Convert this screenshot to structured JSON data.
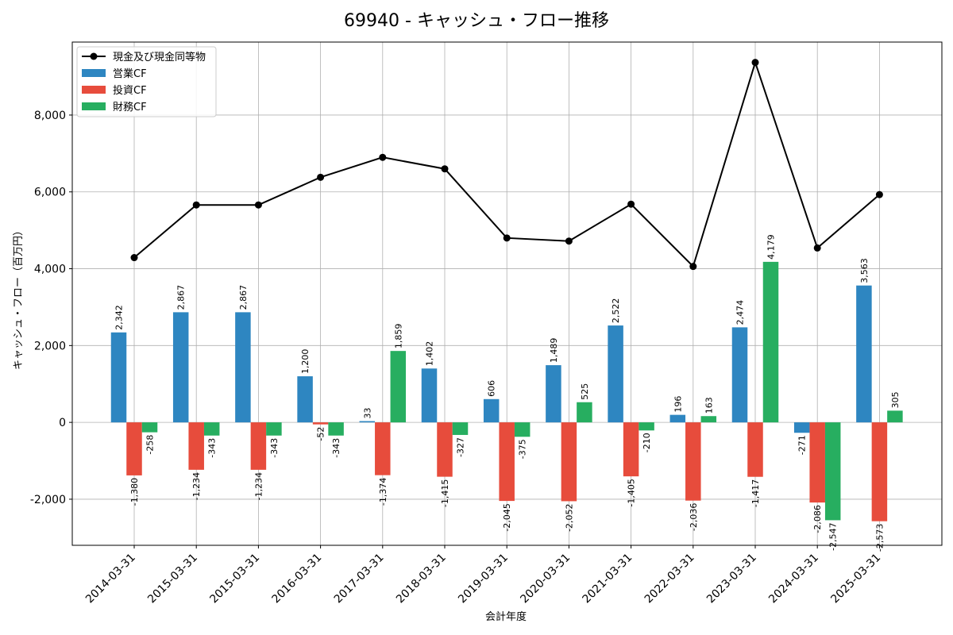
{
  "chart_data": {
    "type": "bar+line",
    "title": "69940 - キャッシュ・フロー推移",
    "xlabel": "会計年度",
    "ylabel": "キャッシュ・フロー（百万円）",
    "ylim": [
      -3200,
      9900
    ],
    "yticks": [
      -2000,
      0,
      2000,
      4000,
      6000,
      8000
    ],
    "ytick_labels": [
      "-2,000",
      "0",
      "2,000",
      "4,000",
      "6,000",
      "8,000"
    ],
    "grid": true,
    "legend_position": "top-left",
    "categories": [
      "2014-03-31",
      "2015-03-31",
      "2015-03-31",
      "2016-03-31",
      "2017-03-31",
      "2018-03-31",
      "2019-03-31",
      "2020-03-31",
      "2021-03-31",
      "2022-03-31",
      "2023-03-31",
      "2024-03-31",
      "2025-03-31"
    ],
    "line": {
      "name": "現金及び現金同等物",
      "color": "#000000",
      "values": [
        4290,
        5660,
        5660,
        6380,
        6900,
        6600,
        4800,
        4720,
        5680,
        4060,
        9370,
        4540,
        5930
      ]
    },
    "series": [
      {
        "name": "営業CF",
        "color": "#2e86c1",
        "values": [
          2342,
          2867,
          2867,
          1200,
          33,
          1402,
          606,
          1489,
          2522,
          196,
          2474,
          -271,
          3563
        ],
        "labels": [
          "2,342",
          "2,867",
          "2,867",
          "1,200",
          "33",
          "1,402",
          "606",
          "1,489",
          "2,522",
          "196",
          "2,474",
          "-271",
          "3,563"
        ]
      },
      {
        "name": "投資CF",
        "color": "#e74c3c",
        "values": [
          -1380,
          -1234,
          -1234,
          -52,
          -1374,
          -1415,
          -2045,
          -2052,
          -1405,
          -2036,
          -1417,
          -2086,
          -2573
        ],
        "labels": [
          "-1,380",
          "-1,234",
          "-1,234",
          "-52",
          "-1,374",
          "-1,415",
          "-2,045",
          "-2,052",
          "-1,405",
          "-2,036",
          "-1,417",
          "-2,086",
          "-2,573"
        ]
      },
      {
        "name": "財務CF",
        "color": "#27ae60",
        "values": [
          -258,
          -343,
          -343,
          -343,
          1859,
          -327,
          -375,
          525,
          -210,
          163,
          4179,
          -2547,
          305
        ],
        "labels": [
          "-258",
          "-343",
          "-343",
          "-343",
          "1,859",
          "-327",
          "-375",
          "525",
          "-210",
          "163",
          "4,179",
          "-2,547",
          "305"
        ]
      }
    ]
  }
}
